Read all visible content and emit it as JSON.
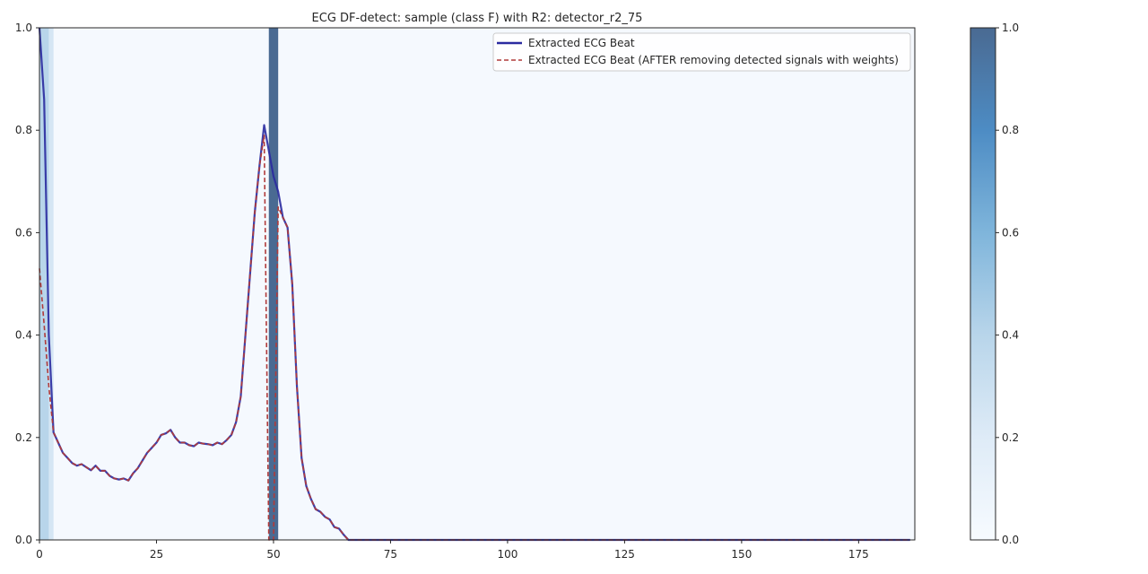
{
  "chart_data": {
    "type": "line",
    "title": "ECG DF-detect: sample (class F) with R2: detector_r2_75",
    "xlabel": "",
    "ylabel": "",
    "xlim": [
      0,
      187
    ],
    "ylim": [
      0,
      1.0
    ],
    "x_ticks": [
      0,
      25,
      50,
      75,
      100,
      125,
      150,
      175
    ],
    "y_ticks": [
      0.0,
      0.2,
      0.4,
      0.6,
      0.8,
      1.0
    ],
    "grid": false,
    "legend_position": "top-right",
    "series": [
      {
        "name": "Extracted ECG Beat",
        "color": "#2a2aa0",
        "style": "solid",
        "x": [
          0,
          1,
          2,
          3,
          4,
          5,
          6,
          7,
          8,
          9,
          10,
          11,
          12,
          13,
          14,
          15,
          16,
          17,
          18,
          19,
          20,
          21,
          22,
          23,
          24,
          25,
          26,
          27,
          28,
          29,
          30,
          31,
          32,
          33,
          34,
          35,
          36,
          37,
          38,
          39,
          40,
          41,
          42,
          43,
          44,
          45,
          46,
          47,
          48,
          49,
          50,
          51,
          52,
          53,
          54,
          55,
          56,
          57,
          58,
          59,
          60,
          61,
          62,
          63,
          64,
          65,
          66,
          67,
          70,
          80,
          100,
          120,
          140,
          160,
          180,
          186
        ],
        "values": [
          1.0,
          0.86,
          0.4,
          0.21,
          0.19,
          0.17,
          0.16,
          0.15,
          0.145,
          0.148,
          0.142,
          0.136,
          0.145,
          0.135,
          0.135,
          0.125,
          0.12,
          0.118,
          0.12,
          0.116,
          0.13,
          0.14,
          0.155,
          0.17,
          0.18,
          0.19,
          0.205,
          0.208,
          0.215,
          0.2,
          0.19,
          0.19,
          0.185,
          0.183,
          0.19,
          0.188,
          0.187,
          0.185,
          0.19,
          0.187,
          0.195,
          0.205,
          0.23,
          0.28,
          0.4,
          0.52,
          0.64,
          0.73,
          0.81,
          0.76,
          0.71,
          0.68,
          0.63,
          0.61,
          0.5,
          0.3,
          0.16,
          0.105,
          0.08,
          0.06,
          0.055,
          0.045,
          0.04,
          0.025,
          0.022,
          0.01,
          0.0,
          0.0,
          0.0,
          0.0,
          0.0,
          0.0,
          0.0,
          0.0,
          0.0,
          0.0
        ]
      },
      {
        "name": "Extracted ECG Beat (AFTER removing detected signals with weights)",
        "color": "#b03a3a",
        "style": "dashed",
        "x": [
          0,
          1,
          2,
          3,
          4,
          5,
          6,
          7,
          8,
          9,
          10,
          11,
          12,
          13,
          14,
          15,
          16,
          17,
          18,
          19,
          20,
          21,
          22,
          23,
          24,
          25,
          26,
          27,
          28,
          29,
          30,
          31,
          32,
          33,
          34,
          35,
          36,
          37,
          38,
          39,
          40,
          41,
          42,
          43,
          44,
          45,
          46,
          47,
          48,
          49,
          50,
          51,
          52,
          53,
          54,
          55,
          56,
          57,
          58,
          59,
          60,
          61,
          62,
          63,
          64,
          65,
          66,
          67,
          70,
          80,
          100,
          120,
          140,
          160,
          180,
          186
        ],
        "values": [
          0.53,
          0.42,
          0.3,
          0.21,
          0.19,
          0.17,
          0.16,
          0.15,
          0.145,
          0.148,
          0.142,
          0.136,
          0.145,
          0.135,
          0.135,
          0.125,
          0.12,
          0.118,
          0.12,
          0.116,
          0.13,
          0.14,
          0.155,
          0.17,
          0.18,
          0.19,
          0.205,
          0.208,
          0.215,
          0.2,
          0.19,
          0.19,
          0.185,
          0.183,
          0.19,
          0.188,
          0.187,
          0.185,
          0.19,
          0.187,
          0.195,
          0.205,
          0.23,
          0.28,
          0.4,
          0.52,
          0.64,
          0.73,
          0.79,
          0.0,
          0.0,
          0.65,
          0.63,
          0.61,
          0.5,
          0.3,
          0.16,
          0.105,
          0.08,
          0.06,
          0.055,
          0.045,
          0.04,
          0.025,
          0.022,
          0.01,
          0.0,
          0.0,
          0.0,
          0.0,
          0.0,
          0.0,
          0.0,
          0.0,
          0.0,
          0.0
        ]
      }
    ],
    "heat_background": {
      "x_start": 0,
      "x_end": 187,
      "base_weight": 0.02,
      "cells": [
        {
          "x0": 0,
          "x1": 2,
          "weight": 0.4
        },
        {
          "x0": 2,
          "x1": 3,
          "weight": 0.25
        },
        {
          "x0": 49,
          "x1": 51,
          "weight": 1.0
        }
      ]
    },
    "colorbar": {
      "range": [
        0.0,
        1.0
      ],
      "ticks": [
        0.0,
        0.2,
        0.4,
        0.6,
        0.8,
        1.0
      ],
      "colors": [
        "#f7fbff",
        "#c6dbef",
        "#9ecae1",
        "#6baed6",
        "#4a82b8",
        "#4a6a92"
      ]
    }
  }
}
